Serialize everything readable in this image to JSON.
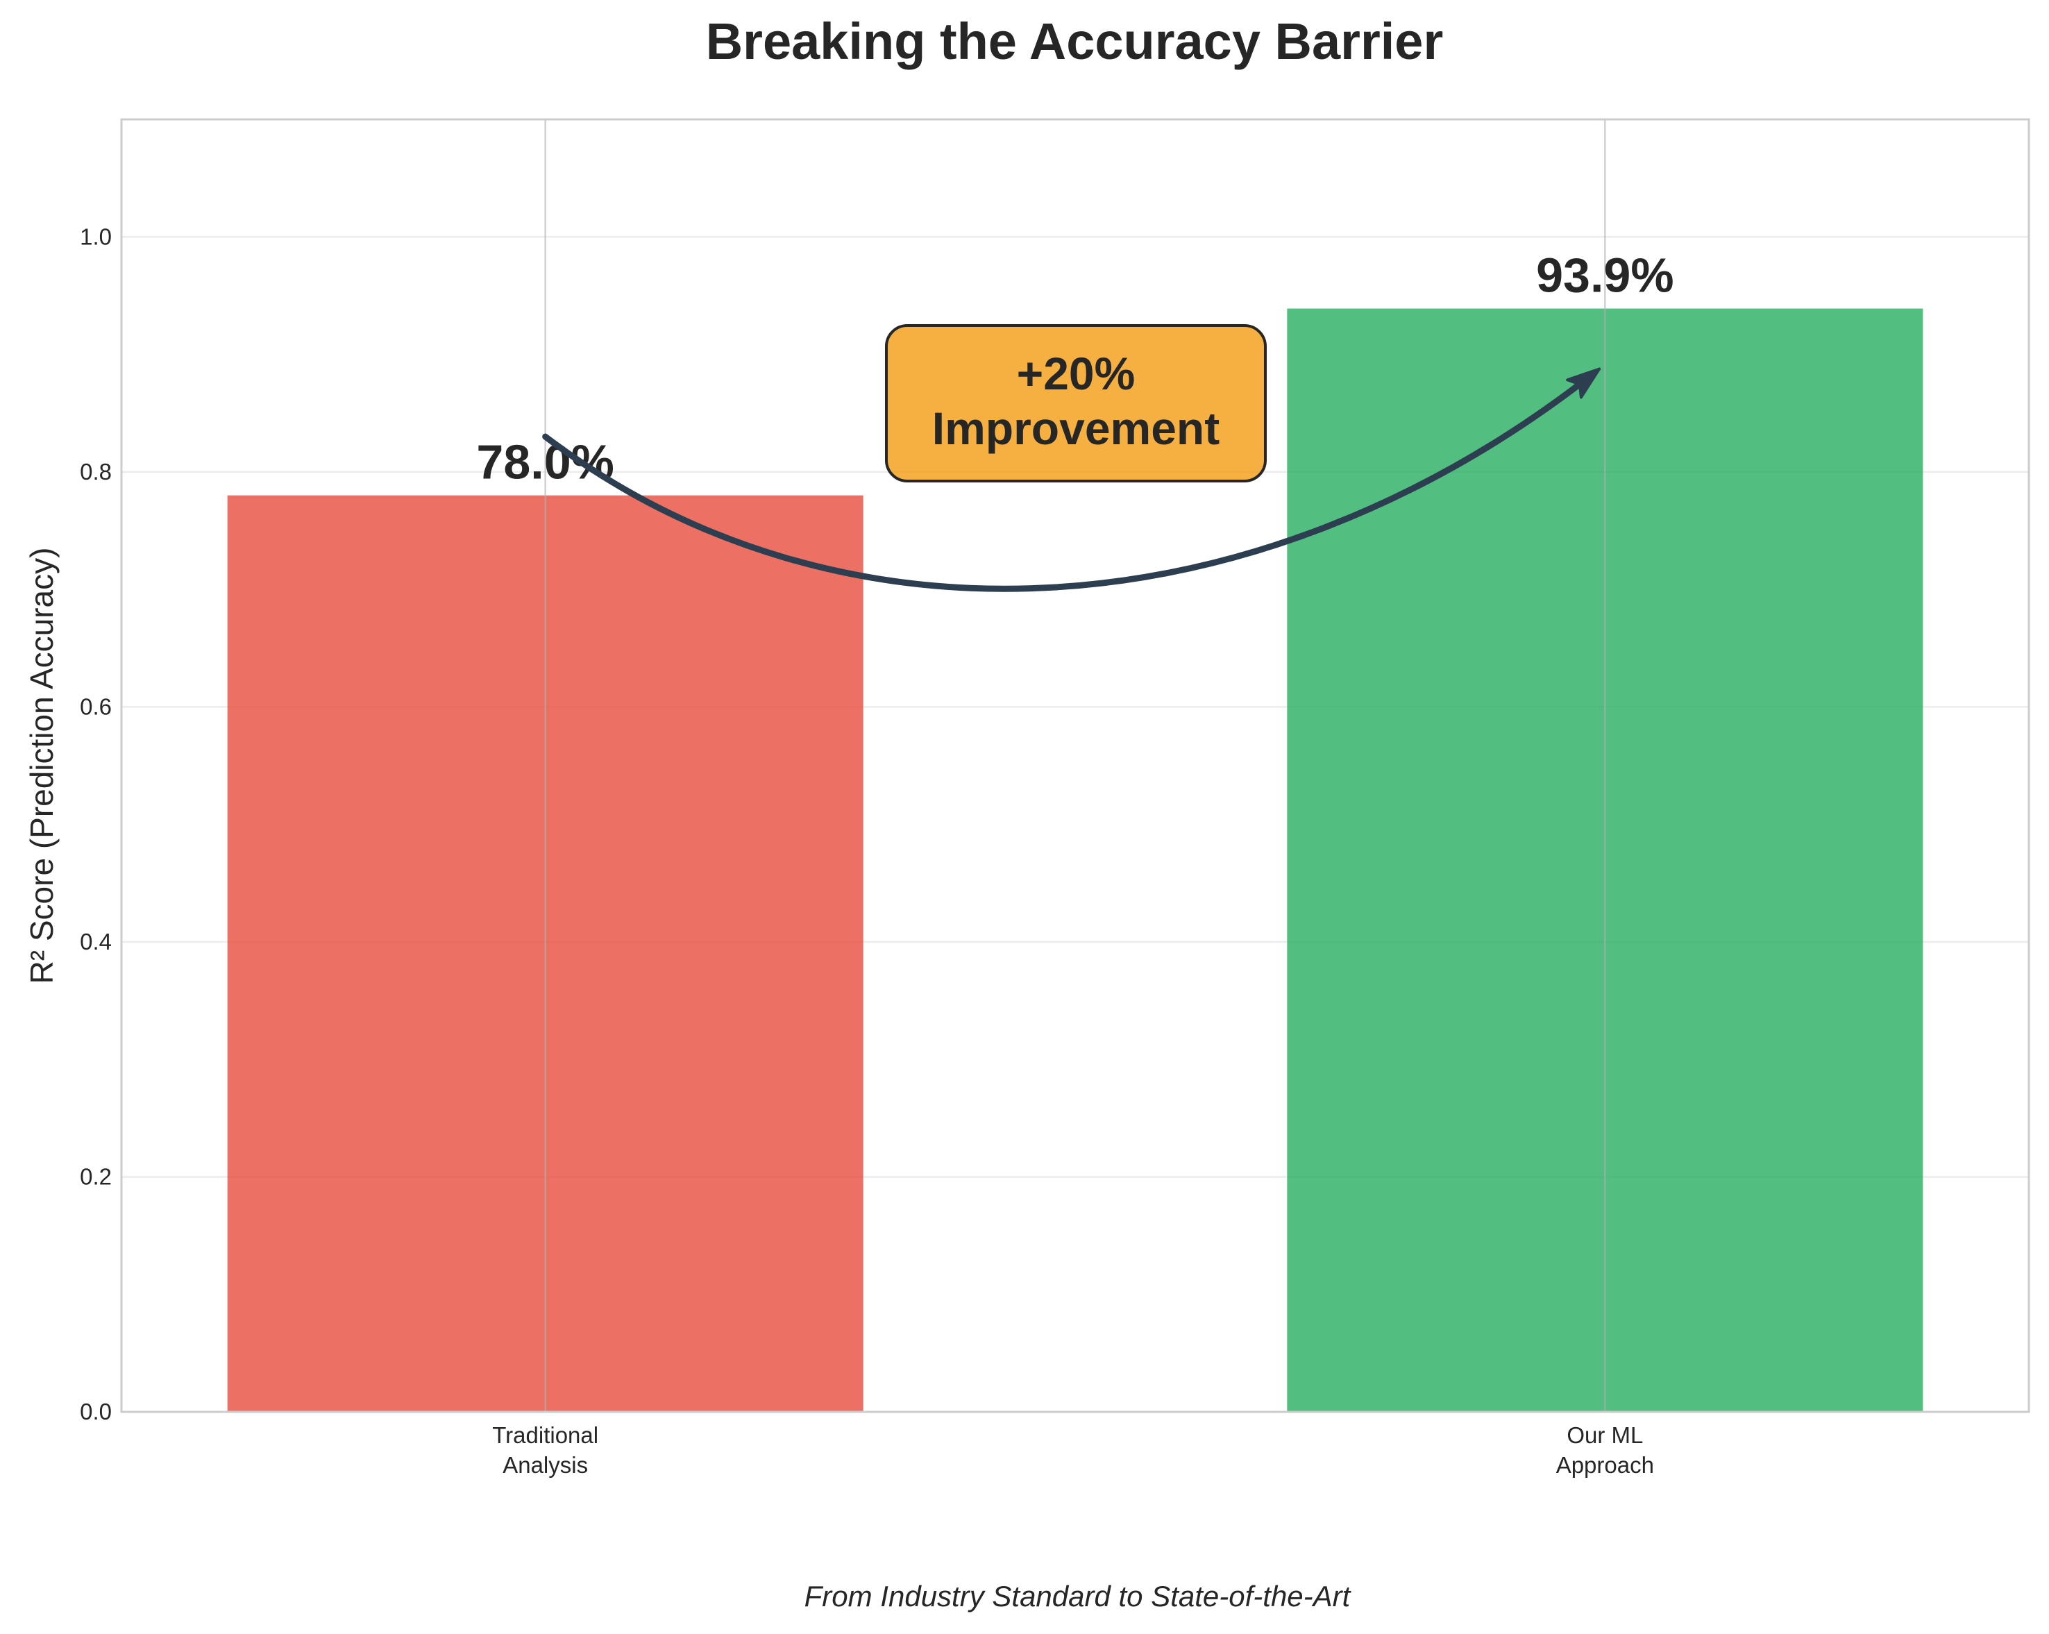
{
  "chart_data": {
    "type": "bar",
    "title": "Breaking the Accuracy Barrier",
    "ylabel": "R² Score (Prediction Accuracy)",
    "xlabel": "",
    "ylim": [
      0,
      1.1
    ],
    "yticks": [
      0.0,
      0.2,
      0.4,
      0.6,
      0.8,
      1.0
    ],
    "ytick_labels": [
      "0.0",
      "0.2",
      "0.4",
      "0.6",
      "0.8",
      "1.0"
    ],
    "grid": true,
    "categories": [
      {
        "line1": "Traditional",
        "line2": "Analysis"
      },
      {
        "line1": "Our ML",
        "line2": "Approach"
      }
    ],
    "values": [
      0.78,
      0.939
    ],
    "data_labels": [
      "78.0%",
      "93.9%"
    ],
    "colors": [
      "#e74c3c",
      "#27ae60"
    ],
    "annotation": {
      "line1": "+20%",
      "line2": "Improvement",
      "box_color": "#f39c12",
      "arrow_color": "#2c3e50"
    },
    "caption": "From Industry Standard to State-of-the-Art"
  }
}
